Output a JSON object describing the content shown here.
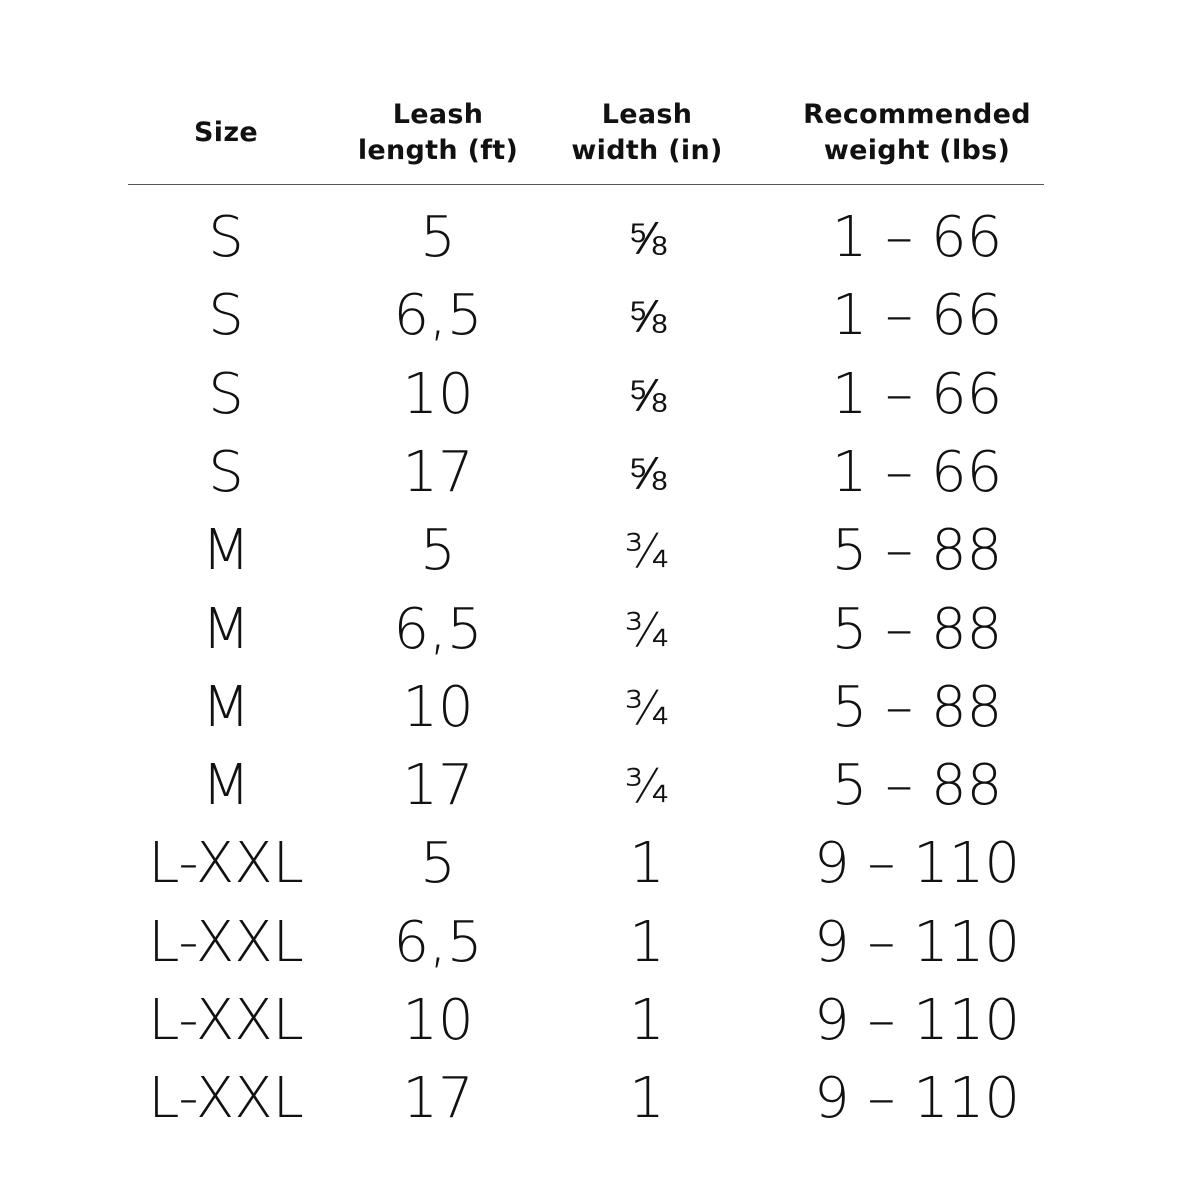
{
  "headers": {
    "size": "Size",
    "length": "Leash\nlength (ft)",
    "width": "Leash\nwidth (in)",
    "weight": "Recommended\nweight (lbs)"
  },
  "rows": [
    {
      "size": "S",
      "length": "5",
      "width": "⅝",
      "weight": "1 – 66"
    },
    {
      "size": "S",
      "length": "6,5",
      "width": "⅝",
      "weight": "1 – 66"
    },
    {
      "size": "S",
      "length": "10",
      "width": "⅝",
      "weight": "1 – 66"
    },
    {
      "size": "S",
      "length": "17",
      "width": "⅝",
      "weight": "1 – 66"
    },
    {
      "size": "M",
      "length": "5",
      "width": "¾",
      "weight": "5 – 88"
    },
    {
      "size": "M",
      "length": "6,5",
      "width": "¾",
      "weight": "5 – 88"
    },
    {
      "size": "M",
      "length": "10",
      "width": "¾",
      "weight": "5 – 88"
    },
    {
      "size": "M",
      "length": "17",
      "width": "¾",
      "weight": "5 – 88"
    },
    {
      "size": "L-XXL",
      "length": "5",
      "width": "1",
      "weight": "9 – 110"
    },
    {
      "size": "L-XXL",
      "length": "6,5",
      "width": "1",
      "weight": "9 – 110"
    },
    {
      "size": "L-XXL",
      "length": "10",
      "width": "1",
      "weight": "9 – 110"
    },
    {
      "size": "L-XXL",
      "length": "17",
      "width": "1",
      "weight": "9 – 110"
    }
  ]
}
